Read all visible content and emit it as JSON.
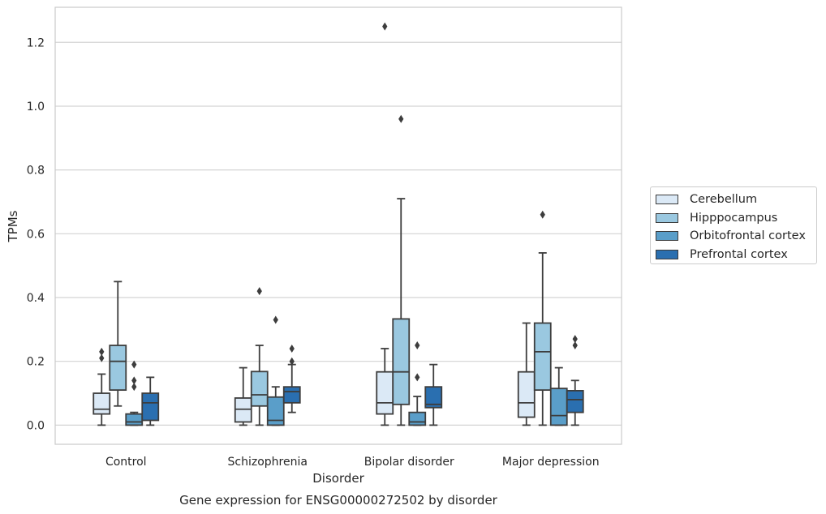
{
  "chart_data": {
    "type": "box",
    "title": "Gene expression for ENSG00000272502 by disorder",
    "xlabel": "Disorder",
    "ylabel": "TPMs",
    "ylim": [
      -0.06,
      1.31
    ],
    "yticks": [
      "0.0",
      "0.2",
      "0.4",
      "0.6",
      "0.8",
      "1.0",
      "1.2"
    ],
    "grid": "horizontal",
    "legend_position": "right",
    "categories": [
      "Control",
      "Schizophrenia",
      "Bipolar disorder",
      "Major depression"
    ],
    "series": [
      {
        "name": "Cerebellum",
        "color": "#dbe9f6",
        "boxes": [
          {
            "whislo": 0.0,
            "q1": 0.035,
            "med": 0.05,
            "q3": 0.1,
            "whishi": 0.16,
            "fliers": [
              0.21,
              0.23
            ]
          },
          {
            "whislo": 0.0,
            "q1": 0.01,
            "med": 0.05,
            "q3": 0.085,
            "whishi": 0.18,
            "fliers": []
          },
          {
            "whislo": 0.0,
            "q1": 0.035,
            "med": 0.07,
            "q3": 0.167,
            "whishi": 0.24,
            "fliers": [
              1.25
            ]
          },
          {
            "whislo": 0.0,
            "q1": 0.025,
            "med": 0.07,
            "q3": 0.167,
            "whishi": 0.32,
            "fliers": []
          }
        ]
      },
      {
        "name": "Hipppocampus",
        "color": "#9ac8e0",
        "boxes": [
          {
            "whislo": 0.06,
            "q1": 0.11,
            "med": 0.2,
            "q3": 0.25,
            "whishi": 0.45,
            "fliers": []
          },
          {
            "whislo": 0.0,
            "q1": 0.06,
            "med": 0.095,
            "q3": 0.168,
            "whishi": 0.25,
            "fliers": [
              0.42
            ]
          },
          {
            "whislo": 0.0,
            "q1": 0.065,
            "med": 0.167,
            "q3": 0.333,
            "whishi": 0.71,
            "fliers": [
              0.96
            ]
          },
          {
            "whislo": 0.0,
            "q1": 0.11,
            "med": 0.23,
            "q3": 0.32,
            "whishi": 0.54,
            "fliers": [
              0.66
            ]
          }
        ]
      },
      {
        "name": "Orbitofrontal cortex",
        "color": "#5a9ec9",
        "boxes": [
          {
            "whislo": 0.0,
            "q1": 0.0,
            "med": 0.01,
            "q3": 0.035,
            "whishi": 0.04,
            "fliers": [
              0.12,
              0.14,
              0.19
            ]
          },
          {
            "whislo": 0.0,
            "q1": 0.0,
            "med": 0.015,
            "q3": 0.088,
            "whishi": 0.12,
            "fliers": [
              0.33
            ]
          },
          {
            "whislo": 0.0,
            "q1": 0.0,
            "med": 0.01,
            "q3": 0.04,
            "whishi": 0.09,
            "fliers": [
              0.15,
              0.25
            ]
          },
          {
            "whislo": 0.0,
            "q1": 0.0,
            "med": 0.03,
            "q3": 0.115,
            "whishi": 0.18,
            "fliers": []
          }
        ]
      },
      {
        "name": "Prefrontal cortex",
        "color": "#2a6fb0",
        "boxes": [
          {
            "whislo": 0.0,
            "q1": 0.015,
            "med": 0.07,
            "q3": 0.1,
            "whishi": 0.15,
            "fliers": []
          },
          {
            "whislo": 0.04,
            "q1": 0.07,
            "med": 0.105,
            "q3": 0.12,
            "whishi": 0.19,
            "fliers": [
              0.2,
              0.24
            ]
          },
          {
            "whislo": 0.0,
            "q1": 0.055,
            "med": 0.065,
            "q3": 0.12,
            "whishi": 0.19,
            "fliers": []
          },
          {
            "whislo": 0.0,
            "q1": 0.04,
            "med": 0.08,
            "q3": 0.108,
            "whishi": 0.14,
            "fliers": [
              0.25,
              0.27
            ]
          }
        ]
      }
    ]
  }
}
